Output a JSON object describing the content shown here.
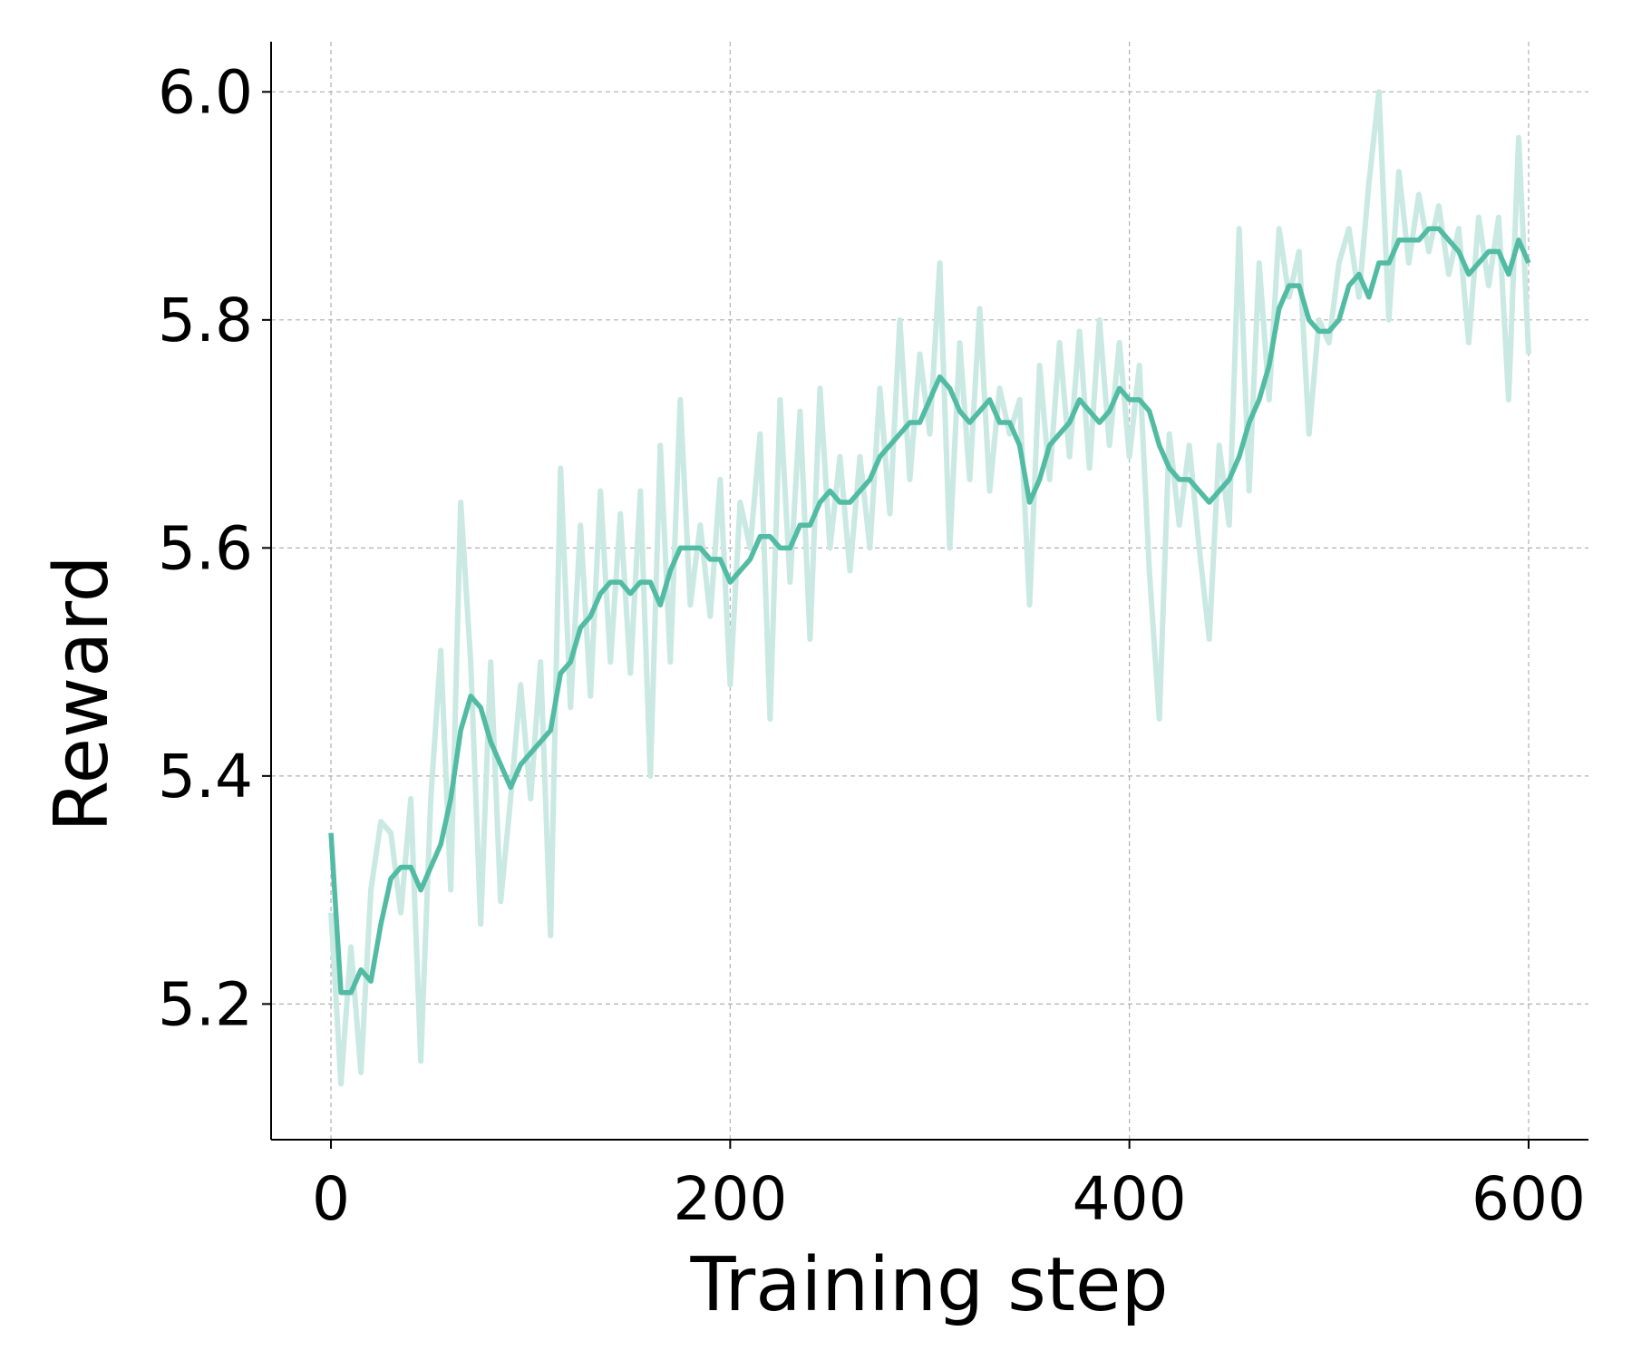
{
  "chart_data": {
    "type": "line",
    "xlabel": "Training step",
    "ylabel": "Reward",
    "x": [
      0,
      5,
      10,
      15,
      20,
      25,
      30,
      35,
      40,
      45,
      50,
      55,
      60,
      65,
      70,
      75,
      80,
      85,
      90,
      95,
      100,
      105,
      110,
      115,
      120,
      125,
      130,
      135,
      140,
      145,
      150,
      155,
      160,
      165,
      170,
      175,
      180,
      185,
      190,
      195,
      200,
      205,
      210,
      215,
      220,
      225,
      230,
      235,
      240,
      245,
      250,
      255,
      260,
      265,
      270,
      275,
      280,
      285,
      290,
      295,
      300,
      305,
      310,
      315,
      320,
      325,
      330,
      335,
      340,
      345,
      350,
      355,
      360,
      365,
      370,
      375,
      380,
      385,
      390,
      395,
      400,
      405,
      410,
      415,
      420,
      425,
      430,
      435,
      440,
      445,
      450,
      455,
      460,
      465,
      470,
      475,
      480,
      485,
      490,
      495,
      500,
      505,
      510,
      515,
      520,
      525,
      530,
      535,
      540,
      545,
      550,
      555,
      560,
      565,
      570,
      575,
      580,
      585,
      590,
      595,
      600
    ],
    "series": [
      {
        "color": "#c9e9e2",
        "values": [
          5.28,
          5.13,
          5.25,
          5.14,
          5.3,
          5.36,
          5.35,
          5.28,
          5.38,
          5.15,
          5.38,
          5.51,
          5.3,
          5.64,
          5.5,
          5.27,
          5.5,
          5.29,
          5.38,
          5.48,
          5.38,
          5.5,
          5.26,
          5.67,
          5.46,
          5.62,
          5.47,
          5.65,
          5.5,
          5.63,
          5.49,
          5.65,
          5.4,
          5.69,
          5.5,
          5.73,
          5.55,
          5.62,
          5.54,
          5.66,
          5.48,
          5.64,
          5.6,
          5.7,
          5.45,
          5.73,
          5.57,
          5.72,
          5.52,
          5.74,
          5.6,
          5.68,
          5.58,
          5.68,
          5.6,
          5.74,
          5.63,
          5.8,
          5.66,
          5.77,
          5.7,
          5.85,
          5.6,
          5.78,
          5.66,
          5.81,
          5.65,
          5.74,
          5.7,
          5.73,
          5.55,
          5.76,
          5.66,
          5.78,
          5.68,
          5.79,
          5.67,
          5.8,
          5.69,
          5.78,
          5.68,
          5.76,
          5.58,
          5.45,
          5.7,
          5.62,
          5.69,
          5.6,
          5.52,
          5.69,
          5.62,
          5.88,
          5.65,
          5.85,
          5.73,
          5.88,
          5.82,
          5.86,
          5.7,
          5.8,
          5.78,
          5.85,
          5.88,
          5.82,
          5.92,
          6.0,
          5.8,
          5.93,
          5.85,
          5.91,
          5.86,
          5.9,
          5.84,
          5.88,
          5.78,
          5.89,
          5.83,
          5.89,
          5.73,
          5.96,
          5.77
        ]
      },
      {
        "color": "#52bba3",
        "values": [
          5.35,
          5.21,
          5.21,
          5.23,
          5.22,
          5.27,
          5.31,
          5.32,
          5.32,
          5.3,
          5.32,
          5.34,
          5.38,
          5.44,
          5.47,
          5.46,
          5.43,
          5.41,
          5.39,
          5.41,
          5.42,
          5.43,
          5.44,
          5.49,
          5.5,
          5.53,
          5.54,
          5.56,
          5.57,
          5.57,
          5.56,
          5.57,
          5.57,
          5.55,
          5.58,
          5.6,
          5.6,
          5.6,
          5.59,
          5.59,
          5.57,
          5.58,
          5.59,
          5.61,
          5.61,
          5.6,
          5.6,
          5.62,
          5.62,
          5.64,
          5.65,
          5.64,
          5.64,
          5.65,
          5.66,
          5.68,
          5.69,
          5.7,
          5.71,
          5.71,
          5.73,
          5.75,
          5.74,
          5.72,
          5.71,
          5.72,
          5.73,
          5.71,
          5.71,
          5.69,
          5.64,
          5.66,
          5.69,
          5.7,
          5.71,
          5.73,
          5.72,
          5.71,
          5.72,
          5.74,
          5.73,
          5.73,
          5.72,
          5.69,
          5.67,
          5.66,
          5.66,
          5.65,
          5.64,
          5.65,
          5.66,
          5.68,
          5.71,
          5.73,
          5.76,
          5.81,
          5.83,
          5.83,
          5.8,
          5.79,
          5.79,
          5.8,
          5.83,
          5.84,
          5.82,
          5.85,
          5.85,
          5.87,
          5.87,
          5.87,
          5.88,
          5.88,
          5.87,
          5.86,
          5.84,
          5.85,
          5.86,
          5.86,
          5.84,
          5.87,
          5.85
        ]
      }
    ],
    "xlim": [
      -30,
      630
    ],
    "ylim": [
      5.081,
      6.044
    ],
    "xticks": [
      0,
      200,
      400,
      600
    ],
    "yticks": [
      5.2,
      5.4,
      5.6,
      5.8,
      {
        "value": 6.0,
        "label": "6.0"
      }
    ],
    "grid": true
  }
}
